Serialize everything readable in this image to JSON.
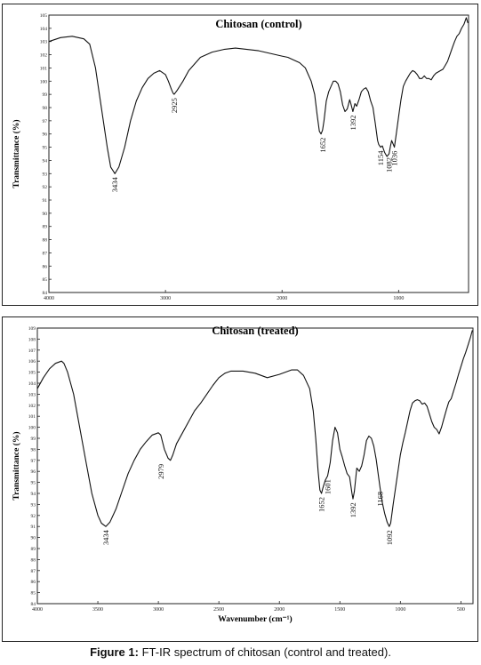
{
  "chart_data": [
    {
      "type": "line",
      "title": "Chitosan (control)",
      "ylabel": "Transmittance (%)",
      "xlabel": "",
      "xlim": [
        4000,
        400
      ],
      "ylim": [
        84,
        105
      ],
      "xticks": [
        4000,
        3000,
        2000,
        1000
      ],
      "yticks": [
        84,
        85,
        86,
        87,
        88,
        89,
        90,
        91,
        92,
        93,
        94,
        95,
        96,
        97,
        98,
        99,
        100,
        101,
        102,
        103,
        104,
        105
      ],
      "grid": false,
      "series": [
        {
          "x": [
            4000,
            3900,
            3800,
            3700,
            3650,
            3600,
            3550,
            3500,
            3470,
            3434,
            3400,
            3350,
            3300,
            3250,
            3200,
            3150,
            3100,
            3050,
            3000,
            2975,
            2950,
            2935,
            2925,
            2900,
            2850,
            2800,
            2700,
            2600,
            2500,
            2400,
            2300,
            2200,
            2100,
            2000,
            1950,
            1900,
            1850,
            1800,
            1750,
            1720,
            1700,
            1680,
            1665,
            1652,
            1640,
            1620,
            1600,
            1580,
            1560,
            1540,
            1520,
            1500,
            1480,
            1460,
            1440,
            1420,
            1410,
            1392,
            1375,
            1360,
            1340,
            1320,
            1300,
            1280,
            1260,
            1240,
            1220,
            1200,
            1180,
            1170,
            1154,
            1140,
            1120,
            1100,
            1082,
            1070,
            1060,
            1050,
            1036,
            1020,
            1000,
            980,
            960,
            940,
            920,
            900,
            880,
            860,
            840,
            820,
            800,
            780,
            760,
            740,
            720,
            700,
            680,
            660,
            640,
            620,
            600,
            580,
            560,
            540,
            520,
            500,
            480,
            460,
            440,
            420,
            405
          ],
          "values": [
            103,
            103.3,
            103.4,
            103.2,
            102.8,
            101,
            98,
            95,
            93.5,
            93,
            93.5,
            95,
            97,
            98.5,
            99.5,
            100.2,
            100.6,
            100.8,
            100.5,
            100,
            99.4,
            99.1,
            99,
            99.3,
            100,
            100.8,
            101.8,
            102.2,
            102.4,
            102.5,
            102.4,
            102.3,
            102.1,
            101.9,
            101.8,
            101.6,
            101.4,
            101,
            100,
            99,
            97.5,
            96.2,
            96,
            96.3,
            97,
            98.5,
            99.2,
            99.6,
            100,
            100,
            99.8,
            99.2,
            98.2,
            97.7,
            97.9,
            98.6,
            98.3,
            97.7,
            98.3,
            98.1,
            98.6,
            99.2,
            99.4,
            99.5,
            99.2,
            98.5,
            98,
            96.8,
            95.5,
            95.2,
            95,
            95.1,
            94.6,
            94.3,
            94.5,
            95.1,
            95.5,
            95.3,
            95,
            96,
            97.3,
            98.6,
            99.6,
            100,
            100.3,
            100.6,
            100.8,
            100.7,
            100.5,
            100.2,
            100.2,
            100.4,
            100.2,
            100.2,
            100.1,
            100.4,
            100.6,
            100.7,
            100.8,
            100.9,
            101.2,
            101.5,
            102,
            102.5,
            103,
            103.4,
            103.6,
            104,
            104.3,
            104.8,
            104.4
          ]
        }
      ],
      "annotations": [
        {
          "label": "3434",
          "x": 3434,
          "y": 93
        },
        {
          "label": "2925",
          "x": 2925,
          "y": 99
        },
        {
          "label": "1652",
          "x": 1652,
          "y": 96
        },
        {
          "label": "1392",
          "x": 1392,
          "y": 97.7
        },
        {
          "label": "1154",
          "x": 1154,
          "y": 95
        },
        {
          "label": "1082",
          "x": 1082,
          "y": 94.5
        },
        {
          "label": "1036",
          "x": 1036,
          "y": 95
        }
      ]
    },
    {
      "type": "line",
      "title": "Chitosan (treated)",
      "ylabel": "Transmittance (%)",
      "xlabel": "Wavenumber (cm⁻¹)",
      "xlim": [
        4000,
        400
      ],
      "ylim": [
        84,
        109
      ],
      "xticks": [
        4000,
        3500,
        3000,
        2500,
        2000,
        1500,
        1000,
        500
      ],
      "yticks": [
        84,
        85,
        86,
        87,
        88,
        89,
        90,
        91,
        92,
        93,
        94,
        95,
        96,
        97,
        98,
        99,
        100,
        101,
        102,
        103,
        104,
        105,
        106,
        107,
        108,
        109
      ],
      "grid": false,
      "series": [
        {
          "x": [
            4000,
            3950,
            3900,
            3850,
            3800,
            3780,
            3750,
            3700,
            3650,
            3600,
            3550,
            3500,
            3470,
            3434,
            3400,
            3350,
            3300,
            3250,
            3200,
            3150,
            3100,
            3050,
            3000,
            2980,
            2950,
            2920,
            2900,
            2880,
            2850,
            2800,
            2750,
            2700,
            2650,
            2600,
            2550,
            2500,
            2450,
            2400,
            2300,
            2200,
            2100,
            2000,
            1900,
            1850,
            1800,
            1750,
            1720,
            1700,
            1680,
            1665,
            1652,
            1640,
            1620,
            1601,
            1580,
            1560,
            1540,
            1520,
            1500,
            1480,
            1460,
            1440,
            1420,
            1400,
            1392,
            1380,
            1360,
            1340,
            1320,
            1300,
            1280,
            1260,
            1240,
            1220,
            1200,
            1180,
            1168,
            1150,
            1130,
            1110,
            1092,
            1080,
            1060,
            1040,
            1020,
            1000,
            980,
            960,
            940,
            920,
            900,
            880,
            860,
            840,
            820,
            800,
            780,
            760,
            740,
            720,
            700,
            680,
            660,
            640,
            620,
            600,
            580,
            560,
            540,
            520,
            500,
            480,
            460,
            440,
            420,
            405
          ],
          "values": [
            103.5,
            104.5,
            105.3,
            105.8,
            106,
            105.8,
            105,
            103,
            100,
            97,
            94,
            92,
            91.3,
            91,
            91.4,
            92.6,
            94.2,
            95.8,
            97,
            98,
            98.7,
            99.3,
            99.5,
            99.3,
            98,
            97.2,
            97,
            97.5,
            98.5,
            99.5,
            100.5,
            101.5,
            102.2,
            103,
            103.8,
            104.5,
            104.9,
            105.1,
            105.1,
            104.9,
            104.5,
            104.8,
            105.2,
            105.2,
            104.7,
            103.5,
            101.5,
            99,
            96,
            94.3,
            94,
            94.5,
            95.2,
            95.6,
            96.8,
            98.8,
            100,
            99.5,
            98,
            97.3,
            96.5,
            95.8,
            95.5,
            94,
            93.5,
            94.2,
            96.3,
            96,
            96.5,
            97.5,
            98.8,
            99.2,
            99,
            98.3,
            97.1,
            95.5,
            94.5,
            93.2,
            92.2,
            91.4,
            91,
            91.3,
            93,
            94.5,
            96,
            97.5,
            98.6,
            99.5,
            100.5,
            101.5,
            102.2,
            102.4,
            102.5,
            102.4,
            102.1,
            102.2,
            101.9,
            101.2,
            100.5,
            100,
            99.8,
            99.4,
            100,
            100.8,
            101.6,
            102.3,
            102.6,
            103.3,
            104,
            104.8,
            105.5,
            106.2,
            106.8,
            107.5,
            108.2,
            108.8
          ]
        }
      ],
      "annotations": [
        {
          "label": "3434",
          "x": 3434,
          "y": 91
        },
        {
          "label": "2979",
          "x": 2979,
          "y": 97
        },
        {
          "label": "1652",
          "x": 1652,
          "y": 94
        },
        {
          "label": "1601",
          "x": 1601,
          "y": 95.6
        },
        {
          "label": "1392",
          "x": 1392,
          "y": 93.5
        },
        {
          "label": "1168",
          "x": 1168,
          "y": 94.5
        },
        {
          "label": "1092",
          "x": 1092,
          "y": 91
        }
      ]
    }
  ],
  "caption": {
    "prefix": "Figure 1:",
    "text": "FT-IR spectrum of chitosan (control and treated)."
  }
}
